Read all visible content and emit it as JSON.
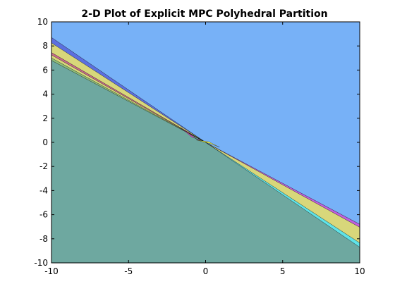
{
  "chart_data": {
    "type": "area",
    "title": "2-D Plot of Explicit MPC Polyhedral Partition",
    "xlabel": "",
    "ylabel": "",
    "xlim": [
      -10,
      10
    ],
    "ylim": [
      -10,
      10
    ],
    "xticks": [
      -10,
      -5,
      0,
      5,
      10
    ],
    "yticks": [
      -10,
      -8,
      -6,
      -4,
      -2,
      0,
      2,
      4,
      6,
      8,
      10
    ],
    "grid": false,
    "legend": "none",
    "regions": [
      {
        "color": "#77b1f7",
        "polygon": [
          [
            -10,
            10
          ],
          [
            10,
            10
          ],
          [
            10,
            -6.8
          ],
          [
            0,
            0
          ],
          [
            -10,
            8.7
          ]
        ]
      },
      {
        "color": "#6ea8a0",
        "polygon": [
          [
            -10,
            -10
          ],
          [
            10,
            -10
          ],
          [
            10,
            -8.7
          ],
          [
            0,
            0
          ],
          [
            -10,
            6.8
          ]
        ]
      },
      {
        "color": "#5c6fe0",
        "polygon": [
          [
            -10,
            8.7
          ],
          [
            0,
            0
          ],
          [
            -10,
            8.25
          ]
        ]
      },
      {
        "color": "#d8d77a",
        "polygon": [
          [
            -10,
            8.25
          ],
          [
            0,
            0
          ],
          [
            -10,
            7.45
          ]
        ]
      },
      {
        "color": "#c96a8e",
        "polygon": [
          [
            -10,
            7.45
          ],
          [
            0,
            0
          ],
          [
            -10,
            7.25
          ]
        ]
      },
      {
        "color": "#d8d77a",
        "polygon": [
          [
            -10,
            7.25
          ],
          [
            0,
            0
          ],
          [
            -10,
            7.0
          ]
        ]
      },
      {
        "color": "#8fbf7a",
        "polygon": [
          [
            -10,
            7.0
          ],
          [
            0,
            0
          ],
          [
            -10,
            6.8
          ]
        ]
      },
      {
        "color": "#f040c8",
        "polygon": [
          [
            -0.9,
            0.45
          ],
          [
            0,
            0
          ],
          [
            -0.5,
            0.2
          ],
          [
            -1.6,
            1.2
          ]
        ]
      },
      {
        "color": "#ffff40",
        "polygon": [
          [
            -0.6,
            0.2
          ],
          [
            0.3,
            -0.1
          ],
          [
            0.9,
            -0.4
          ],
          [
            0.2,
            0.05
          ]
        ]
      },
      {
        "color": "#c060e0",
        "polygon": [
          [
            0,
            0
          ],
          [
            10,
            -6.8
          ],
          [
            10,
            -7.05
          ]
        ]
      },
      {
        "color": "#d8d77a",
        "polygon": [
          [
            0,
            0
          ],
          [
            10,
            -7.05
          ],
          [
            10,
            -8.35
          ]
        ]
      },
      {
        "color": "#5fe3e8",
        "polygon": [
          [
            0,
            0
          ],
          [
            10,
            -8.35
          ],
          [
            10,
            -8.7
          ]
        ]
      }
    ]
  }
}
